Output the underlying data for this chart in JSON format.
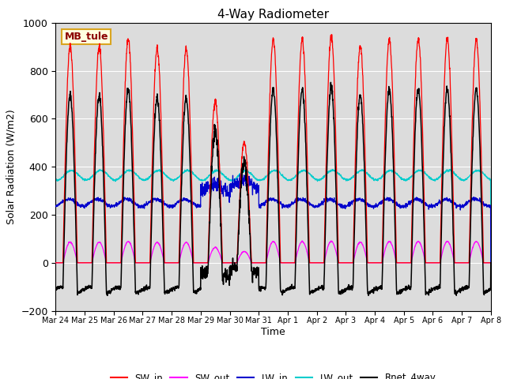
{
  "title": "4-Way Radiometer",
  "xlabel": "Time",
  "ylabel": "Solar Radiation (W/m2)",
  "annotation": "MB_tule",
  "ylim": [
    -200,
    1000
  ],
  "tick_labels": [
    "Mar 24",
    "Mar 25",
    "Mar 26",
    "Mar 27",
    "Mar 28",
    "Mar 29",
    "Mar 30",
    "Mar 31",
    "Apr 1",
    "Apr 2",
    "Apr 3",
    "Apr 4",
    "Apr 5",
    "Apr 6",
    "Apr 7",
    "Apr 8"
  ],
  "colors": {
    "SW_in": "#ff0000",
    "SW_out": "#ff00ff",
    "LW_in": "#0000cc",
    "LW_out": "#00cccc",
    "Rnet_4way": "#000000"
  },
  "bg_color": "#dcdcdc",
  "lw_main": 1.0
}
